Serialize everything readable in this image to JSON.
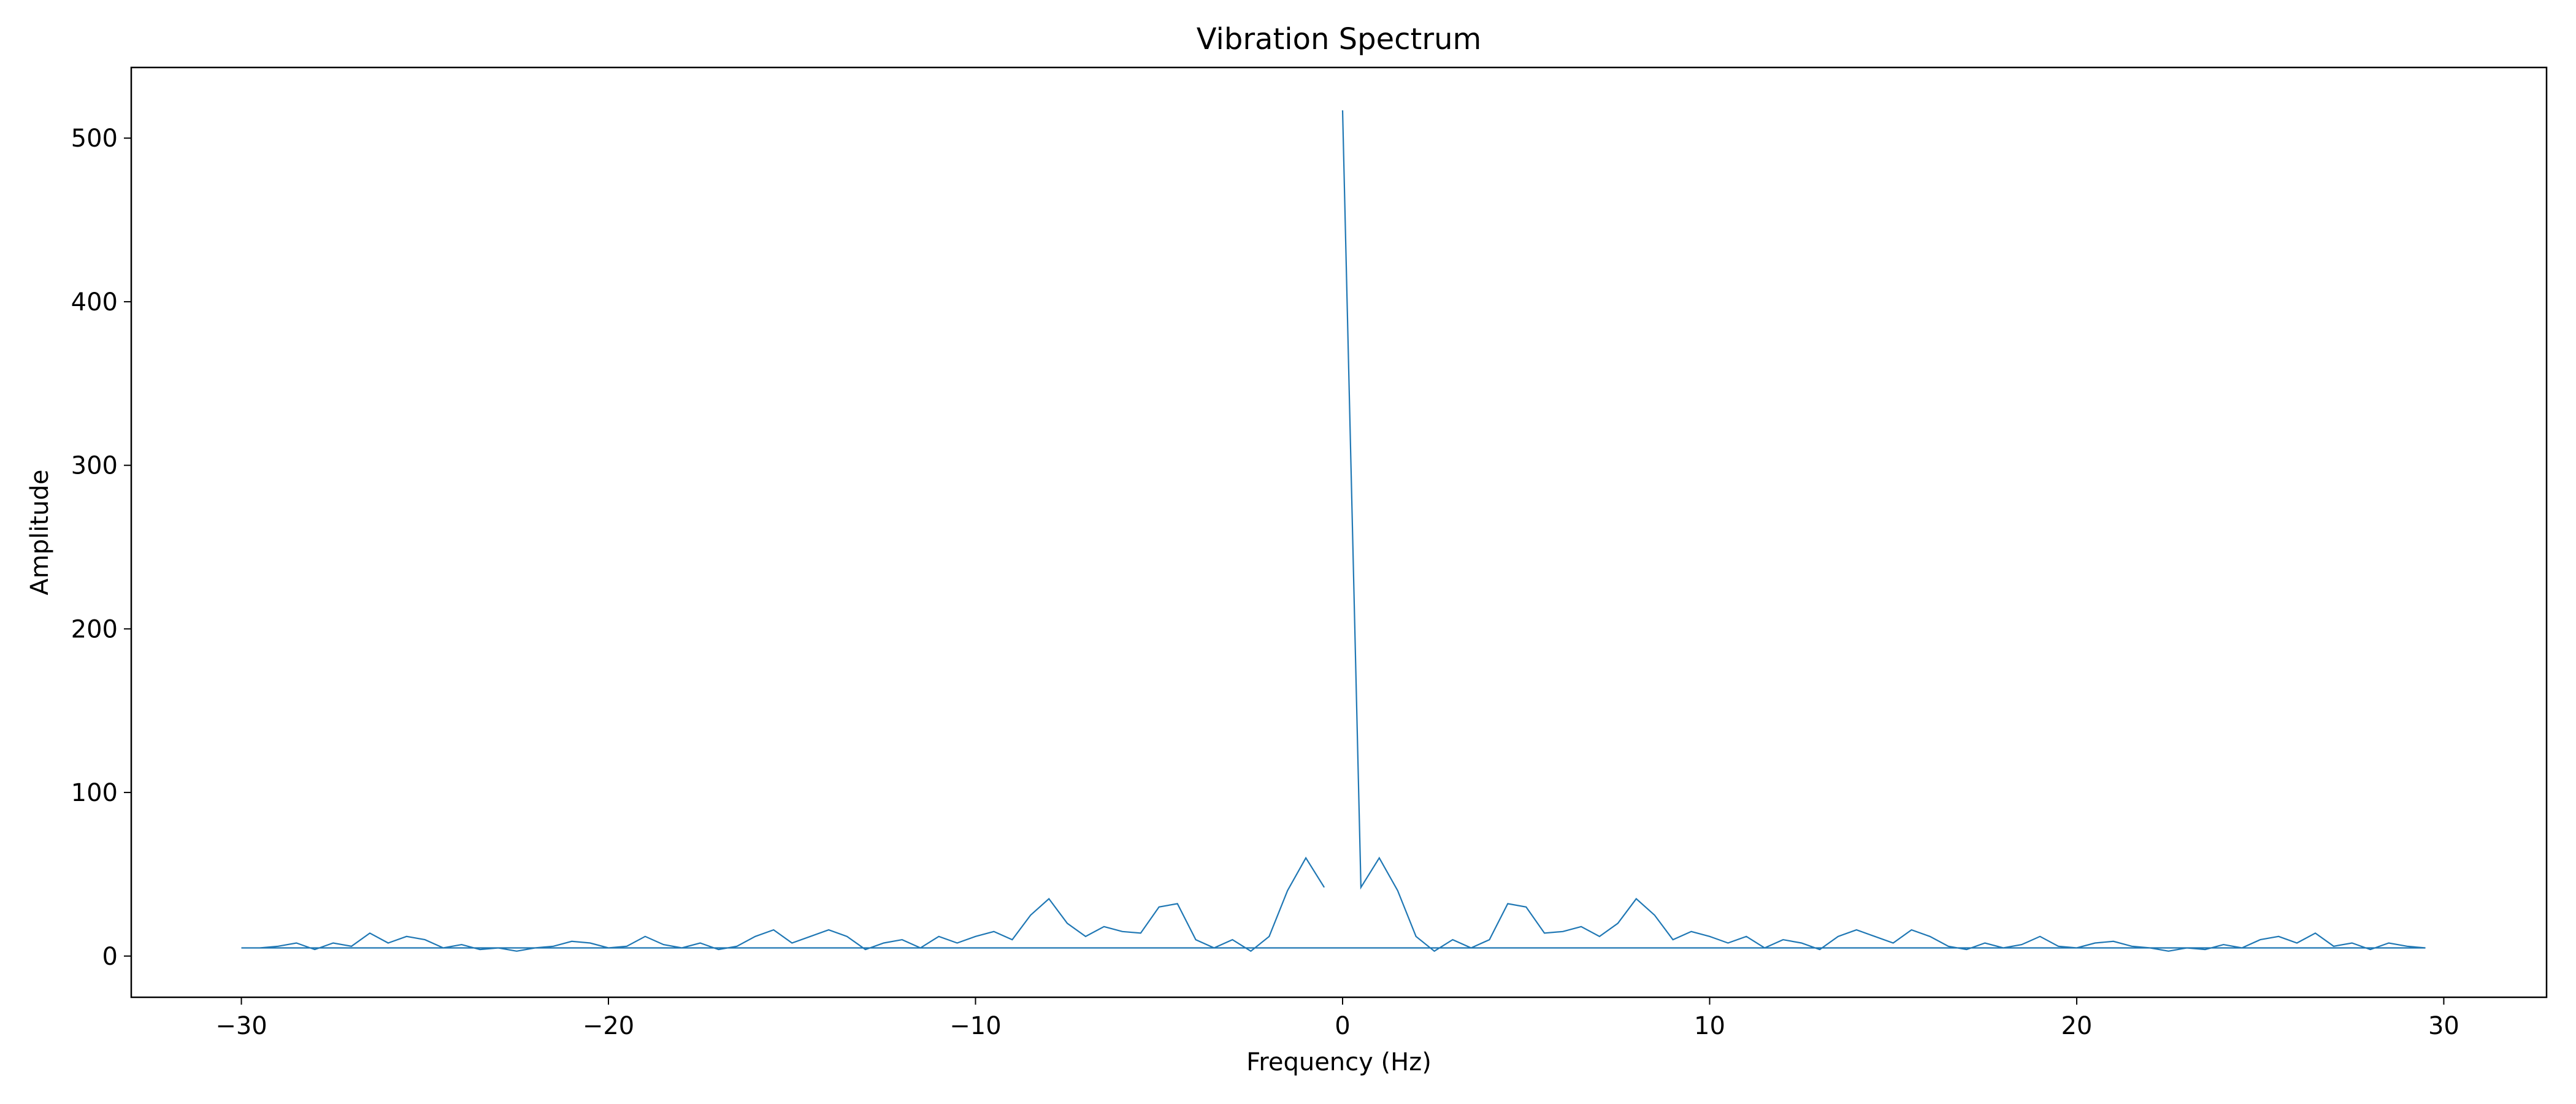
{
  "chart_data": {
    "type": "line",
    "title": "Vibration Spectrum",
    "xlabel": "Frequency (Hz)",
    "ylabel": "Amplitude",
    "x": [
      0,
      0.5,
      1,
      1.5,
      2,
      2.5,
      3,
      3.5,
      4,
      4.5,
      5,
      5.5,
      6,
      6.5,
      7,
      7.5,
      8,
      8.5,
      9,
      9.5,
      10,
      10.5,
      11,
      11.5,
      12,
      12.5,
      13,
      13.5,
      14,
      14.5,
      15,
      15.5,
      16,
      16.5,
      17,
      17.5,
      18,
      18.5,
      19,
      19.5,
      20,
      20.5,
      21,
      21.5,
      22,
      22.5,
      23,
      23.5,
      24,
      24.5,
      25,
      25.5,
      26,
      26.5,
      27,
      27.5,
      28,
      28.5,
      29,
      29.5,
      -30,
      -29.5,
      -29,
      -28.5,
      -28,
      -27.5,
      -27,
      -26.5,
      -26,
      -25.5,
      -25,
      -24.5,
      -24,
      -23.5,
      -23,
      -22.5,
      -22,
      -21.5,
      -21,
      -20.5,
      -20,
      -19.5,
      -19,
      -18.5,
      -18,
      -17.5,
      -17,
      -16.5,
      -16,
      -15.5,
      -15,
      -14.5,
      -14,
      -13.5,
      -13,
      -12.5,
      -12,
      -11.5,
      -11,
      -10.5,
      -10,
      -9.5,
      -9,
      -8.5,
      -8,
      -7.5,
      -7,
      -6.5,
      -6,
      -5.5,
      -5,
      -4.5,
      -4,
      -3.5,
      -3,
      -2.5,
      -2,
      -1.5,
      -1,
      -0.5
    ],
    "values": [
      517,
      42,
      60,
      40,
      12,
      3,
      10,
      5,
      10,
      32,
      30,
      14,
      15,
      18,
      12,
      20,
      35,
      25,
      10,
      15,
      12,
      8,
      12,
      5,
      10,
      8,
      4,
      12,
      16,
      12,
      8,
      16,
      12,
      6,
      4,
      8,
      5,
      7,
      12,
      6,
      5,
      8,
      9,
      6,
      5,
      3,
      5,
      4,
      7,
      5,
      10,
      12,
      8,
      14,
      6,
      8,
      4,
      8,
      6,
      5,
      5,
      5,
      6,
      8,
      4,
      8,
      6,
      14,
      8,
      12,
      10,
      5,
      7,
      4,
      5,
      3,
      5,
      6,
      9,
      8,
      5,
      6,
      12,
      7,
      5,
      8,
      4,
      6,
      12,
      16,
      8,
      12,
      16,
      12,
      4,
      8,
      10,
      5,
      12,
      8,
      12,
      15,
      10,
      25,
      35,
      20,
      12,
      18,
      15,
      14,
      30,
      32,
      10,
      5,
      10,
      3,
      12,
      40,
      60,
      42
    ],
    "color": "#1f77b4",
    "xlim": [
      -33,
      32.8
    ],
    "ylim": [
      -25.2,
      543.2
    ],
    "xticks": [
      {
        "value": -30,
        "label": "−30"
      },
      {
        "value": -20,
        "label": "−20"
      },
      {
        "value": -10,
        "label": "−10"
      },
      0,
      10,
      20,
      30
    ],
    "yticks": [
      0,
      100,
      200,
      300,
      400,
      500
    ]
  }
}
